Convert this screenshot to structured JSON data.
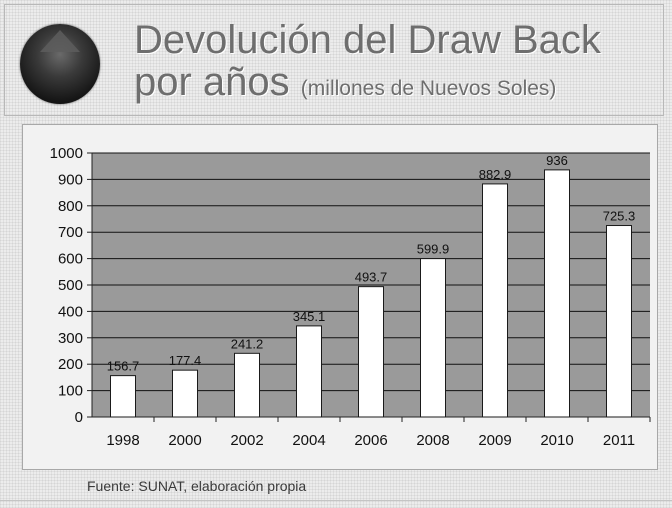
{
  "header": {
    "title_line1": "Devolución del Draw Back",
    "title_line2_main": "por años",
    "title_line2_sub": "(millones de Nuevos Soles)"
  },
  "chart_data": {
    "type": "bar",
    "title": "",
    "xlabel": "",
    "ylabel": "",
    "categories": [
      "1998",
      "2000",
      "2002",
      "2004",
      "2006",
      "2008",
      "2009",
      "2010",
      "2011"
    ],
    "values": [
      156.7,
      177.4,
      241.2,
      345.1,
      493.7,
      599.9,
      882.9,
      936,
      725.3
    ],
    "value_labels": [
      "156.7",
      "177.4",
      "241.2",
      "345.1",
      "493.7",
      "599.9",
      "882.9",
      "936",
      "725.3"
    ],
    "ylim": [
      0,
      1000
    ],
    "yticks": [
      0,
      100,
      200,
      300,
      400,
      500,
      600,
      700,
      800,
      900,
      1000
    ],
    "grid": true,
    "legend": "none",
    "colors": {
      "bar_fill": "#ffffff",
      "bar_stroke": "#1a1a1a",
      "plot_background": "#9a9a9a",
      "grid": "#111111"
    }
  },
  "footer": {
    "source": "Fuente: SUNAT, elaboración propia"
  }
}
